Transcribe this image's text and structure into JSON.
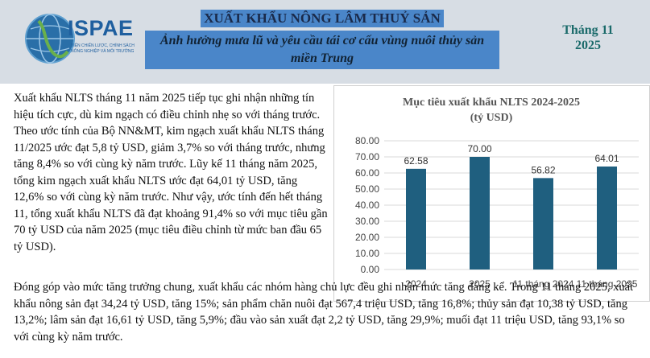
{
  "header": {
    "logo_text": "ISPAE",
    "logo_sub_line1": "VIỆN CHIẾN LƯỢC, CHÍNH SÁCH",
    "logo_sub_line2": "NÔNG NGHIỆP VÀ MÔI TRƯỜNG",
    "title": "XUẤT KHẨU NÔNG LÂM THUỶ SẢN",
    "subtitle": "Ảnh hưởng mưa lũ và yêu cầu tái cơ cấu vùng nuôi thủy sản miền Trung",
    "month_line1": "Tháng 11",
    "month_line2": "2025",
    "colors": {
      "background": "#d7dde4",
      "title_highlight": "#4a86c9",
      "month_text": "#1a6a6a",
      "logo": "#1f5f9f"
    }
  },
  "body": {
    "paragraph1": "Xuất khẩu NLTS tháng 11 năm 2025 tiếp tục ghi nhận những tín hiệu tích cực, dù kim ngạch có điều chỉnh nhẹ so với tháng trước. Theo ước tính của Bộ NN&MT, kim ngạch xuất khẩu NLTS tháng 11/2025 ước đạt 5,8 tỷ USD, giảm 3,7% so với tháng trước, nhưng tăng 8,4% so với cùng kỳ năm trước. Lũy kế 11 tháng năm 2025, tổng kim ngạch xuất khẩu NLTS ước đạt 64,01 tỷ USD, tăng 12,6% so với cùng kỳ năm trước. Như vậy, ước tính đến hết tháng 11, tổng xuất khẩu NLTS đã đạt khoảng 91,4% so với mục tiêu gần 70 tỷ USD của năm 2025 (mục tiêu điều chỉnh từ mức ban đầu 65 tỷ USD).",
    "paragraph2": "Đóng góp vào mức tăng trưởng chung, xuất khẩu các nhóm hàng chủ lực đều ghi nhận mức tăng đáng kể. Trong 11 tháng 2025, xuất khẩu nông sản đạt 34,24 tỷ USD, tăng 15%; sản phẩm chăn nuôi đạt 567,4 triệu USD, tăng 16,8%; thủy sản đạt 10,38 tỷ USD, tăng 13,2%; lâm sản đạt 16,61 tỷ USD, tăng 5,9%; đầu vào sản xuất đạt 2,2 tỷ USD, tăng 29,9%; muối đạt 11 triệu USD, tăng 93,1% so với cùng kỳ năm trước."
  },
  "chart_data": {
    "type": "bar",
    "title": "Mục tiêu xuất khẩu NLTS 2024-2025",
    "subtitle": "(tỷ USD)",
    "categories": [
      "2024",
      "2025",
      "11 tháng 2024",
      "11 tháng 2025"
    ],
    "values": [
      62.58,
      70.0,
      56.82,
      64.01
    ],
    "value_labels": [
      "62.58",
      "70.00",
      "56.82",
      "64.01"
    ],
    "ylim": [
      0,
      80
    ],
    "yticks": [
      "0.00",
      "10.00",
      "20.00",
      "30.00",
      "40.00",
      "50.00",
      "60.00",
      "70.00",
      "80.00"
    ],
    "bar_color": "#1f5f7f",
    "grid": true,
    "legend": "none"
  }
}
